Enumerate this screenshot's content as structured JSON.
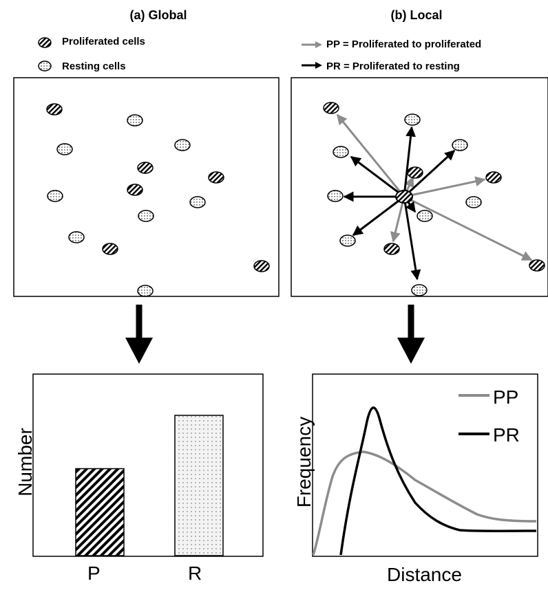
{
  "titles": {
    "global": "(a) Global",
    "local": "(b) Local"
  },
  "legend_left": {
    "proliferated": "Proliferated cells",
    "resting": "Resting cells"
  },
  "legend_right": {
    "pp": "PP = Proliferated to proliferated",
    "pr": "PR = Proliferated to resting"
  },
  "colors": {
    "pp": "#8c8c8c",
    "pr": "#000000"
  },
  "bar_chart": {
    "ylabel": "Number",
    "categories": [
      "P",
      "R"
    ],
    "values": [
      0.62,
      1.0
    ]
  },
  "curve_chart": {
    "xlabel": "Distance",
    "ylabel": "Frequency",
    "series": [
      {
        "name": "PP"
      },
      {
        "name": "PR"
      }
    ]
  },
  "chart_data": [
    {
      "type": "bar",
      "categories": [
        "P",
        "R"
      ],
      "values": [
        0.62,
        1.0
      ],
      "xlabel": "",
      "ylabel": "Number"
    },
    {
      "type": "line",
      "xlabel": "Distance",
      "ylabel": "Frequency",
      "series": [
        {
          "name": "PP"
        },
        {
          "name": "PR"
        }
      ]
    }
  ]
}
